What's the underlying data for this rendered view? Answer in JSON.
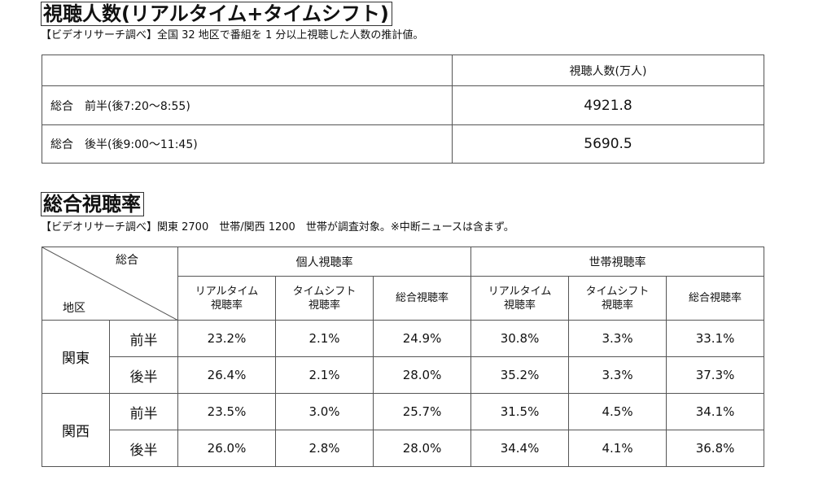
{
  "section1": {
    "title": "視聴人数(リアルタイム+タイムシフト)",
    "note": "【ビデオリサーチ調べ】全国 32 地区で番組を 1 分以上視聴した人数の推計値。",
    "column_header": "視聴人数(万人)",
    "rows": [
      {
        "label": "総合　前半(後7:20〜8:55)",
        "value": "4921.8"
      },
      {
        "label": "総合　後半(後9:00〜11:45)",
        "value": "5690.5"
      }
    ]
  },
  "section2": {
    "title": "総合視聴率",
    "note": "【ビデオリサーチ調べ】関東 2700　世帯/関西 1200　世帯が調査対象。※中断ニュースは含まず。",
    "corner_top": "総合",
    "corner_bottom": "地区",
    "groups": [
      "個人視聴率",
      "世帯視聴率"
    ],
    "subheaders": [
      [
        "リアルタイム",
        "視聴率"
      ],
      [
        "タイムシフト",
        "視聴率"
      ],
      [
        "総合視聴率"
      ],
      [
        "リアルタイム",
        "視聴率"
      ],
      [
        "タイムシフト",
        "視聴率"
      ],
      [
        "総合視聴率"
      ]
    ],
    "regions": [
      {
        "name": "関東",
        "rows": [
          {
            "half": "前半",
            "values": [
              "23.2%",
              "2.1%",
              "24.9%",
              "30.8%",
              "3.3%",
              "33.1%"
            ]
          },
          {
            "half": "後半",
            "values": [
              "26.4%",
              "2.1%",
              "28.0%",
              "35.2%",
              "3.3%",
              "37.3%"
            ]
          }
        ]
      },
      {
        "name": "関西",
        "rows": [
          {
            "half": "前半",
            "values": [
              "23.5%",
              "3.0%",
              "25.7%",
              "31.5%",
              "4.5%",
              "34.1%"
            ]
          },
          {
            "half": "後半",
            "values": [
              "26.0%",
              "2.8%",
              "28.0%",
              "34.4%",
              "4.1%",
              "36.8%"
            ]
          }
        ]
      }
    ]
  }
}
